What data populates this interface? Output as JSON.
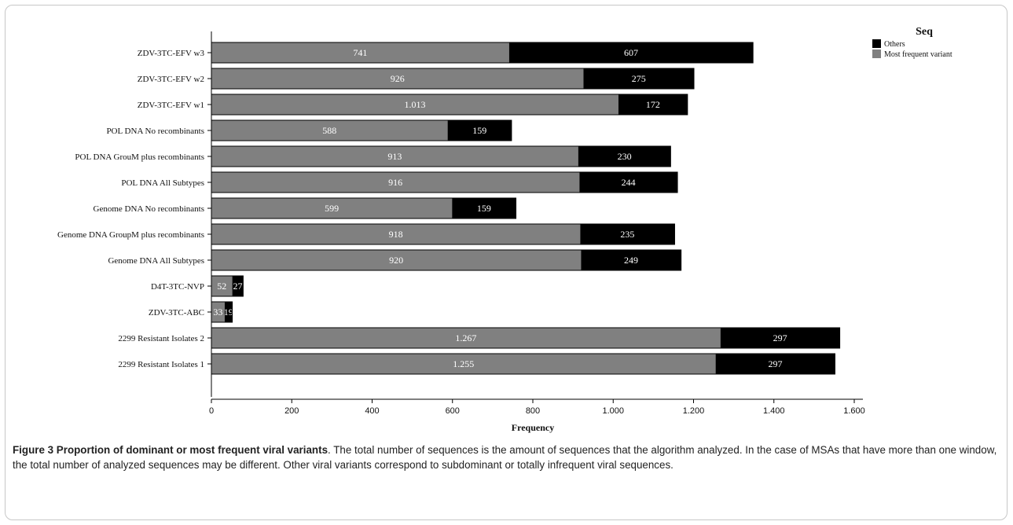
{
  "chart_data": {
    "type": "bar",
    "orientation": "horizontal",
    "stacked": true,
    "categories": [
      "ZDV-3TC-EFV w3",
      "ZDV-3TC-EFV w2",
      "ZDV-3TC-EFV w1",
      "POL DNA No recombinants",
      "POL DNA GrouM plus recombinants",
      "POL DNA All Subtypes",
      "Genome DNA No recombinants",
      "Genome DNA GroupM plus recombinants",
      "Genome DNA All Subtypes",
      "D4T-3TC-NVP",
      "ZDV-3TC-ABC",
      "2299 Resistant Isolates 2",
      "2299 Resistant Isolates 1"
    ],
    "series": [
      {
        "name": "Most frequent variant",
        "color": "#808080",
        "values": [
          741,
          926,
          1013,
          588,
          913,
          916,
          599,
          918,
          920,
          52,
          33,
          1267,
          1255
        ],
        "labels": [
          "741",
          "926",
          "1.013",
          "588",
          "913",
          "916",
          "599",
          "918",
          "920",
          "52",
          "33",
          "1.267",
          "1.255"
        ]
      },
      {
        "name": "Others",
        "color": "#000000",
        "values": [
          607,
          275,
          172,
          159,
          230,
          244,
          159,
          235,
          249,
          27,
          19,
          297,
          297
        ],
        "labels": [
          "607",
          "275",
          "172",
          "159",
          "230",
          "244",
          "159",
          "235",
          "249",
          "27",
          "19",
          "297",
          "297"
        ]
      }
    ],
    "xlim": [
      0,
      1600
    ],
    "xticks": [
      0,
      200,
      400,
      600,
      800,
      1000,
      1200,
      1400,
      1600
    ],
    "xtick_labels": [
      "0",
      "200",
      "400",
      "600",
      "800",
      "1.000",
      "1.200",
      "1.400",
      "1.600"
    ],
    "xlabel": "Frequency",
    "ylabel": "",
    "legend": {
      "title": "Seq",
      "position": "top-right",
      "entries": [
        "Others",
        "Most frequent variant"
      ]
    },
    "grid": false
  },
  "caption": {
    "title": "Figure 3 Proportion of dominant or most frequent viral variants",
    "text": ". The total number of sequences is the amount of sequences that the algorithm analyzed. In the case of MSAs that have more than one window, the total number of analyzed sequences may be different. Other viral variants correspond to subdominant or totally infrequent viral sequences."
  }
}
